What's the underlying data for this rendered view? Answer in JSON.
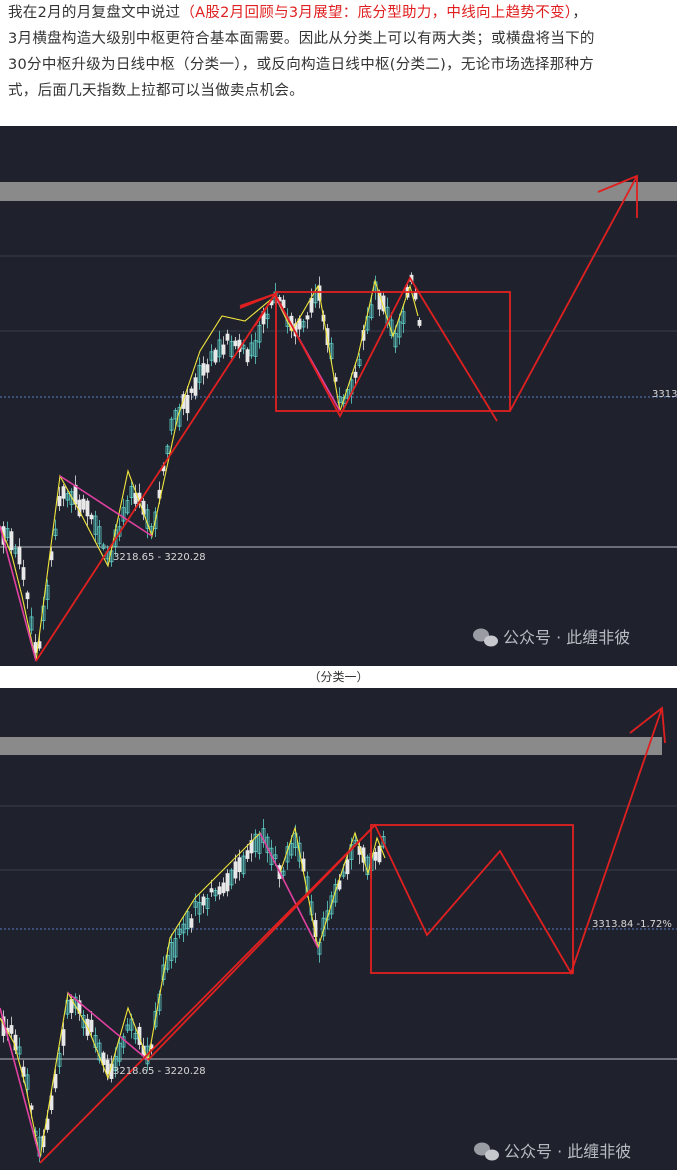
{
  "article": {
    "line1_before": "我在2月的月复盘文中说过",
    "line1_red": "（A股2月回顾与3月展望：底分型助力，中线向上趋势不变）",
    "line1_after": "，",
    "line2": "3月横盘构造大级别中枢更符合基本面需要。因此从分类上可以有两大类；或横盘将当下的",
    "line3": "30分中枢升级为日线中枢（分类一），或反向构造日线中枢(分类二)，无论市场选择那种方",
    "line4": "式，后面几天指数上拉都可以当做卖点机会。"
  },
  "caption_1": "（分类一）",
  "watermark": "公众号 · 此缠非彼",
  "chart_data": [
    {
      "type": "candlestick",
      "title": "",
      "annotations": [
        {
          "label": "3218.65 - 3220.28"
        },
        {
          "label": "3313"
        }
      ],
      "colors": {
        "background": "#1f222d",
        "up_candle": "#5fd0c8",
        "down_candle": "#e8e8e8",
        "stroke_lines": "#f2e63c",
        "segment_down": "#e040a0",
        "trend_arrows": "#e02020",
        "resistance_band": "#8a8a8a"
      },
      "grid": true
    },
    {
      "type": "candlestick",
      "title": "",
      "annotations": [
        {
          "label": "3218.65 - 3220.28"
        },
        {
          "label": "3313.84 -1.72%"
        }
      ],
      "colors": {
        "background": "#1f222d",
        "up_candle": "#5fd0c8",
        "down_candle": "#e8e8e8",
        "stroke_lines": "#f2e63c",
        "segment_down": "#e040a0",
        "trend_arrows": "#e02020",
        "resistance_band": "#8a8a8a"
      },
      "grid": true
    }
  ]
}
